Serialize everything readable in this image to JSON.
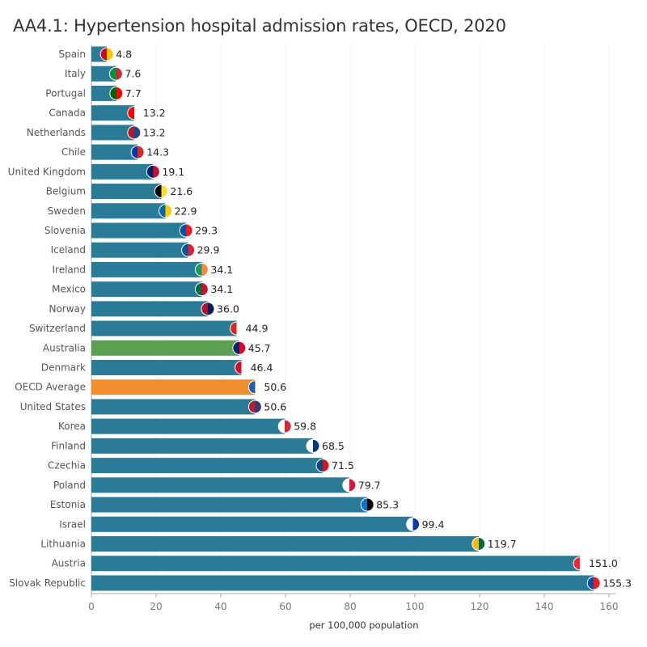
{
  "chart_data": {
    "type": "bar",
    "orientation": "horizontal",
    "title": "AA4.1: Hypertension hospital admission rates, OECD, 2020",
    "xlabel": "per 100,000 population",
    "ylabel": "",
    "xlim": [
      0,
      165
    ],
    "xticks": [
      0,
      20,
      40,
      60,
      80,
      100,
      120,
      140,
      160
    ],
    "grid": "vertical dotted",
    "colors": {
      "default": "#2a7b96",
      "highlight": "#59a14f",
      "average": "#f28e2b"
    },
    "categories": [
      "Spain",
      "Italy",
      "Portugal",
      "Canada",
      "Netherlands",
      "Chile",
      "United Kingdom",
      "Belgium",
      "Sweden",
      "Slovenia",
      "Iceland",
      "Ireland",
      "Mexico",
      "Norway",
      "Switzerland",
      "Australia",
      "Denmark",
      "OECD Average",
      "United States",
      "Korea",
      "Finland",
      "Czechia",
      "Poland",
      "Estonia",
      "Israel",
      "Lithuania",
      "Austria",
      "Slovak Republic"
    ],
    "values": [
      4.8,
      7.6,
      7.7,
      13.2,
      13.2,
      14.3,
      19.1,
      21.6,
      22.9,
      29.3,
      29.9,
      34.1,
      34.1,
      36.0,
      44.9,
      45.7,
      46.4,
      50.6,
      50.6,
      59.8,
      68.5,
      71.5,
      79.7,
      85.3,
      99.4,
      119.7,
      151.0,
      155.3
    ],
    "value_labels": [
      "4.8",
      "7.6",
      "7.7",
      "13.2",
      "13.2",
      "14.3",
      "19.1",
      "21.6",
      "22.9",
      "29.3",
      "29.9",
      "34.1",
      "34.1",
      "36.0",
      "44.9",
      "45.7",
      "46.4",
      "50.6",
      "50.6",
      "59.8",
      "68.5",
      "71.5",
      "79.7",
      "85.3",
      "99.4",
      "119.7",
      "151.0",
      "155.3"
    ],
    "highlight": {
      "Australia": "highlight",
      "OECD Average": "average"
    },
    "flag_colors": [
      [
        "#c60b1e",
        "#ffc400"
      ],
      [
        "#009246",
        "#ce2b37"
      ],
      [
        "#006600",
        "#ff0000"
      ],
      [
        "#ff0000",
        "#ffffff"
      ],
      [
        "#ae1c28",
        "#21468b"
      ],
      [
        "#0039a6",
        "#d52b1e"
      ],
      [
        "#012169",
        "#c8102e"
      ],
      [
        "#000000",
        "#fdda24"
      ],
      [
        "#006aa7",
        "#fecc00"
      ],
      [
        "#0051a2",
        "#ed1c24"
      ],
      [
        "#02529c",
        "#dc1e35"
      ],
      [
        "#169b62",
        "#ff883e"
      ],
      [
        "#006847",
        "#ce1126"
      ],
      [
        "#ba0c2f",
        "#00205b"
      ],
      [
        "#d52b1e",
        "#ffffff"
      ],
      [
        "#012169",
        "#e4002b"
      ],
      [
        "#c8102e",
        "#ffffff"
      ],
      [
        "#1f5fa8",
        "#ffffff"
      ],
      [
        "#b22234",
        "#3c3b6e"
      ],
      [
        "#ffffff",
        "#cd2e3a"
      ],
      [
        "#ffffff",
        "#003580"
      ],
      [
        "#11457e",
        "#d7141a"
      ],
      [
        "#ffffff",
        "#dc143c"
      ],
      [
        "#0072ce",
        "#000000"
      ],
      [
        "#ffffff",
        "#0038b8"
      ],
      [
        "#fdb913",
        "#006a44"
      ],
      [
        "#ed2939",
        "#ffffff"
      ],
      [
        "#0b4ea2",
        "#ee1c25"
      ]
    ]
  }
}
